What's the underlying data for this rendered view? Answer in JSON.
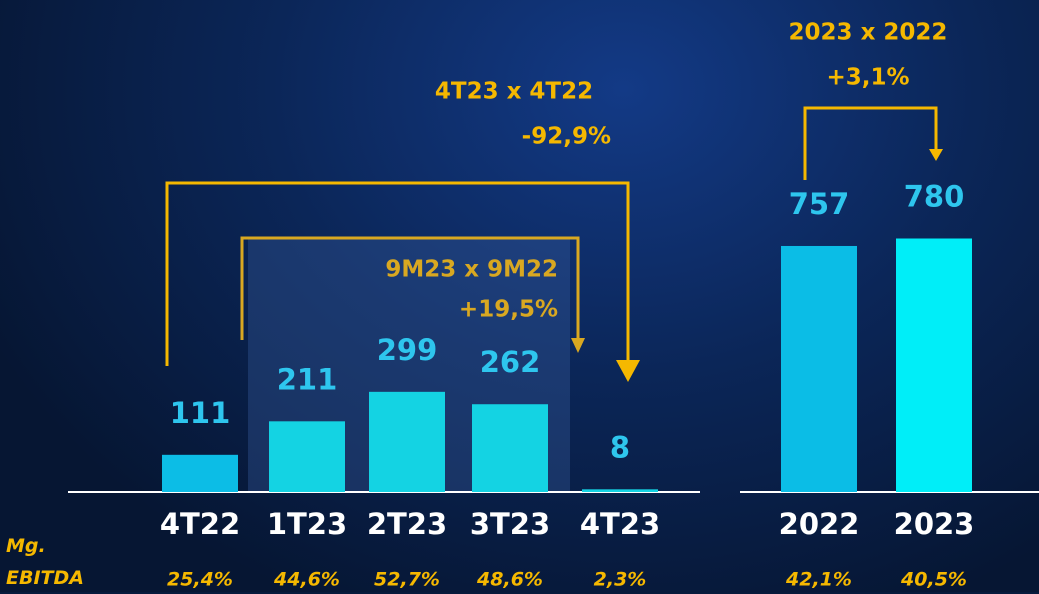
{
  "chart_data": [
    {
      "type": "bar",
      "categories": [
        "4T22",
        "1T23",
        "2T23",
        "3T23",
        "4T23"
      ],
      "values": [
        111,
        211,
        299,
        262,
        8
      ],
      "colors": [
        "#0cbde6",
        "#14d3e3",
        "#14d3e3",
        "#14d3e3",
        "#14d3e3"
      ],
      "margin": {
        "name": "Mg. EBITDA",
        "values": [
          25.4,
          44.6,
          52.7,
          48.6,
          2.3
        ],
        "value_labels": [
          "25,4%",
          "44,6%",
          "52,7%",
          "48,6%",
          "2,3%"
        ]
      },
      "annotations": [
        {
          "text": "4T23 x 4T22",
          "change": "-92,9%"
        },
        {
          "text": "9M23 x 9M22",
          "change": "+19,5%"
        }
      ]
    },
    {
      "type": "bar",
      "categories": [
        "2022",
        "2023"
      ],
      "values": [
        757,
        780
      ],
      "colors": [
        "#0bbde6",
        "#00eef8"
      ],
      "margin": {
        "values": [
          42.1,
          40.5
        ],
        "value_labels": [
          "42,1%",
          "40,5%"
        ]
      },
      "annotations": [
        {
          "text": "2023 x 2022",
          "change": "+3,1%"
        }
      ]
    }
  ]
}
